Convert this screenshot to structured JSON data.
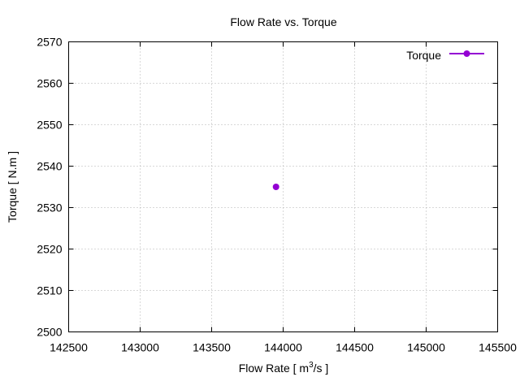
{
  "chart_data": {
    "type": "line",
    "title": "Flow Rate vs. Torque",
    "xlabel_main": "Flow Rate [ m",
    "xlabel_sup": "3",
    "xlabel_tail": "/s ]",
    "ylabel": "Torque [ N.m ]",
    "xlim": [
      142500,
      145500
    ],
    "ylim": [
      2500,
      2570
    ],
    "xticks": [
      142500,
      143000,
      143500,
      144000,
      144500,
      145000,
      145500
    ],
    "yticks": [
      2500,
      2510,
      2520,
      2530,
      2540,
      2550,
      2560,
      2570
    ],
    "grid": true,
    "legend_position": "top-right",
    "series": [
      {
        "name": "Torque",
        "color": "#9400d3",
        "x": [
          143950
        ],
        "y": [
          2535
        ]
      }
    ]
  }
}
